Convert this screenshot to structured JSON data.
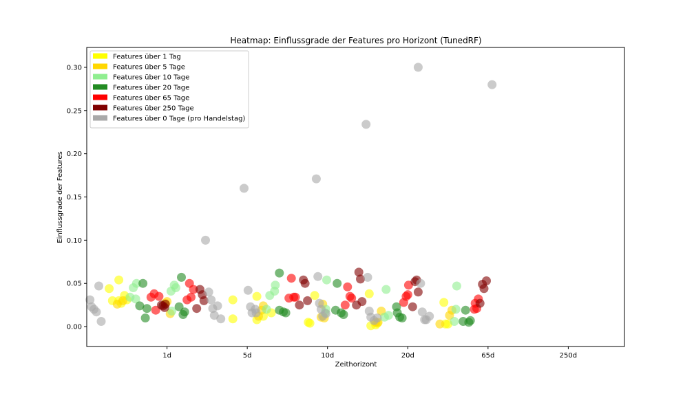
{
  "chart_data": {
    "type": "scatter",
    "title": "Heatmap: Einflussgrade der Features pro Horizont (TunedRF)",
    "xlabel": "Zeithorizont",
    "ylabel": "Einflussgrade der Features",
    "categories": [
      "1d",
      "5d",
      "10d",
      "20d",
      "65d",
      "250d"
    ],
    "xlim": [
      -1.0,
      5.7
    ],
    "ylim": [
      -0.023,
      0.323
    ],
    "yticks": [
      0.0,
      0.05,
      0.1,
      0.15,
      0.2,
      0.25,
      0.3
    ],
    "ytick_labels": [
      "0.00",
      "0.05",
      "0.10",
      "0.15",
      "0.20",
      "0.25",
      "0.30"
    ],
    "grid": false,
    "legend_position": "top-left",
    "series": [
      {
        "name": "Features über 1 Tag",
        "color": "#ffff00",
        "points": [
          [
            -0.72,
            0.044
          ],
          [
            -0.68,
            0.03
          ],
          [
            -0.6,
            0.054
          ],
          [
            -0.6,
            0.03
          ],
          [
            -0.57,
            0.027
          ],
          [
            -0.53,
            0.036
          ],
          [
            -0.5,
            0.031
          ],
          [
            0.82,
            0.031
          ],
          [
            0.82,
            0.009
          ],
          [
            1.12,
            0.035
          ],
          [
            1.12,
            0.008
          ],
          [
            1.2,
            0.012
          ],
          [
            1.3,
            0.016
          ],
          [
            1.76,
            0.005
          ],
          [
            1.78,
            0.004
          ],
          [
            1.84,
            0.036
          ],
          [
            2.52,
            0.038
          ],
          [
            2.54,
            0.001
          ],
          [
            2.6,
            0.002
          ],
          [
            2.62,
            0.004
          ],
          [
            3.45,
            0.028
          ],
          [
            3.47,
            0.003
          ],
          [
            3.5,
            0.003
          ]
        ]
      },
      {
        "name": "Features über 5 Tage",
        "color": "#ffd700",
        "points": [
          [
            -0.62,
            0.026
          ],
          [
            -0.55,
            0.03
          ],
          [
            -0.02,
            0.027
          ],
          [
            0.0,
            0.029
          ],
          [
            0.04,
            0.015
          ],
          [
            1.14,
            0.012
          ],
          [
            1.18,
            0.019
          ],
          [
            1.2,
            0.024
          ],
          [
            1.92,
            0.011
          ],
          [
            1.94,
            0.026
          ],
          [
            1.96,
            0.01
          ],
          [
            2.6,
            0.005
          ],
          [
            2.63,
            0.005
          ],
          [
            2.67,
            0.018
          ],
          [
            3.52,
            0.013
          ],
          [
            3.55,
            0.019
          ],
          [
            3.4,
            0.003
          ]
        ]
      },
      {
        "name": "Features über 10 Tage",
        "color": "#90ee90",
        "points": [
          [
            -0.46,
            0.034
          ],
          [
            -0.42,
            0.045
          ],
          [
            -0.38,
            0.05
          ],
          [
            -0.39,
            0.032
          ],
          [
            0.06,
            0.018
          ],
          [
            0.05,
            0.041
          ],
          [
            0.09,
            0.048
          ],
          [
            0.11,
            0.045
          ],
          [
            1.24,
            0.02
          ],
          [
            1.28,
            0.036
          ],
          [
            1.34,
            0.041
          ],
          [
            1.35,
            0.048
          ],
          [
            1.97,
            0.016
          ],
          [
            1.98,
            0.02
          ],
          [
            1.99,
            0.054
          ],
          [
            2.71,
            0.011
          ],
          [
            2.73,
            0.043
          ],
          [
            2.76,
            0.013
          ],
          [
            3.58,
            0.006
          ],
          [
            3.6,
            0.02
          ],
          [
            3.61,
            0.047
          ]
        ]
      },
      {
        "name": "Features über 20 Tage",
        "color": "#228b22",
        "points": [
          [
            -0.34,
            0.024
          ],
          [
            -0.3,
            0.05
          ],
          [
            -0.27,
            0.01
          ],
          [
            -0.25,
            0.021
          ],
          [
            0.15,
            0.023
          ],
          [
            0.18,
            0.057
          ],
          [
            0.2,
            0.014
          ],
          [
            0.22,
            0.017
          ],
          [
            1.4,
            0.062
          ],
          [
            1.4,
            0.019
          ],
          [
            1.45,
            0.017
          ],
          [
            1.48,
            0.016
          ],
          [
            2.1,
            0.019
          ],
          [
            2.12,
            0.05
          ],
          [
            2.17,
            0.016
          ],
          [
            2.2,
            0.014
          ],
          [
            2.87,
            0.016
          ],
          [
            2.86,
            0.023
          ],
          [
            2.9,
            0.011
          ],
          [
            2.93,
            0.01
          ],
          [
            3.69,
            0.006
          ],
          [
            3.72,
            0.019
          ],
          [
            3.76,
            0.005
          ],
          [
            3.78,
            0.007
          ]
        ]
      },
      {
        "name": "Features über 65 Tage",
        "color": "#ff0000",
        "points": [
          [
            -0.2,
            0.034
          ],
          [
            -0.16,
            0.038
          ],
          [
            -0.14,
            0.019
          ],
          [
            -0.1,
            0.035
          ],
          [
            0.25,
            0.031
          ],
          [
            0.28,
            0.05
          ],
          [
            0.3,
            0.034
          ],
          [
            0.33,
            0.043
          ],
          [
            1.52,
            0.033
          ],
          [
            1.55,
            0.056
          ],
          [
            1.58,
            0.034
          ],
          [
            1.6,
            0.034
          ],
          [
            2.22,
            0.025
          ],
          [
            2.28,
            0.035
          ],
          [
            2.25,
            0.046
          ],
          [
            2.3,
            0.033
          ],
          [
            2.95,
            0.028
          ],
          [
            2.98,
            0.035
          ],
          [
            3.01,
            0.048
          ],
          [
            3.0,
            0.037
          ],
          [
            3.83,
            0.02
          ],
          [
            3.84,
            0.027
          ],
          [
            3.88,
            0.032
          ],
          [
            3.86,
            0.021
          ]
        ]
      },
      {
        "name": "Features über 250 Tage",
        "color": "#800000",
        "points": [
          [
            -0.07,
            0.025
          ],
          [
            -0.05,
            0.024
          ],
          [
            -0.03,
            0.022
          ],
          [
            -0.02,
            0.026
          ],
          [
            0.37,
            0.021
          ],
          [
            0.41,
            0.043
          ],
          [
            0.44,
            0.037
          ],
          [
            0.46,
            0.03
          ],
          [
            1.65,
            0.025
          ],
          [
            1.7,
            0.054
          ],
          [
            1.72,
            0.05
          ],
          [
            1.75,
            0.03
          ],
          [
            2.36,
            0.025
          ],
          [
            2.39,
            0.063
          ],
          [
            2.41,
            0.055
          ],
          [
            2.43,
            0.029
          ],
          [
            3.06,
            0.023
          ],
          [
            3.09,
            0.052
          ],
          [
            3.11,
            0.054
          ],
          [
            3.13,
            0.04
          ],
          [
            3.9,
            0.027
          ],
          [
            3.93,
            0.049
          ],
          [
            3.95,
            0.044
          ],
          [
            3.98,
            0.053
          ]
        ]
      },
      {
        "name": "Features über 0 Tage (pro Handelstag)",
        "color": "#a9a9a9",
        "points": [
          [
            -0.96,
            0.031
          ],
          [
            -0.94,
            0.023
          ],
          [
            -0.91,
            0.02
          ],
          [
            -0.88,
            0.017
          ],
          [
            -0.82,
            0.006
          ],
          [
            -0.85,
            0.047
          ],
          [
            0.48,
            0.1
          ],
          [
            0.52,
            0.04
          ],
          [
            0.55,
            0.031
          ],
          [
            0.57,
            0.021
          ],
          [
            0.59,
            0.013
          ],
          [
            0.63,
            0.024
          ],
          [
            0.67,
            0.009
          ],
          [
            0.96,
            0.16
          ],
          [
            1.01,
            0.042
          ],
          [
            1.04,
            0.023
          ],
          [
            1.06,
            0.016
          ],
          [
            1.1,
            0.02
          ],
          [
            1.11,
            0.016
          ],
          [
            1.86,
            0.171
          ],
          [
            1.88,
            0.058
          ],
          [
            1.9,
            0.027
          ],
          [
            1.92,
            0.02
          ],
          [
            1.94,
            0.012
          ],
          [
            1.98,
            0.015
          ],
          [
            2.48,
            0.234
          ],
          [
            2.5,
            0.057
          ],
          [
            2.52,
            0.018
          ],
          [
            2.54,
            0.011
          ],
          [
            2.58,
            0.007
          ],
          [
            2.62,
            0.01
          ],
          [
            3.13,
            0.3
          ],
          [
            3.16,
            0.05
          ],
          [
            3.18,
            0.017
          ],
          [
            3.21,
            0.008
          ],
          [
            3.23,
            0.008
          ],
          [
            3.27,
            0.012
          ],
          [
            4.05,
            0.28
          ]
        ]
      }
    ]
  }
}
